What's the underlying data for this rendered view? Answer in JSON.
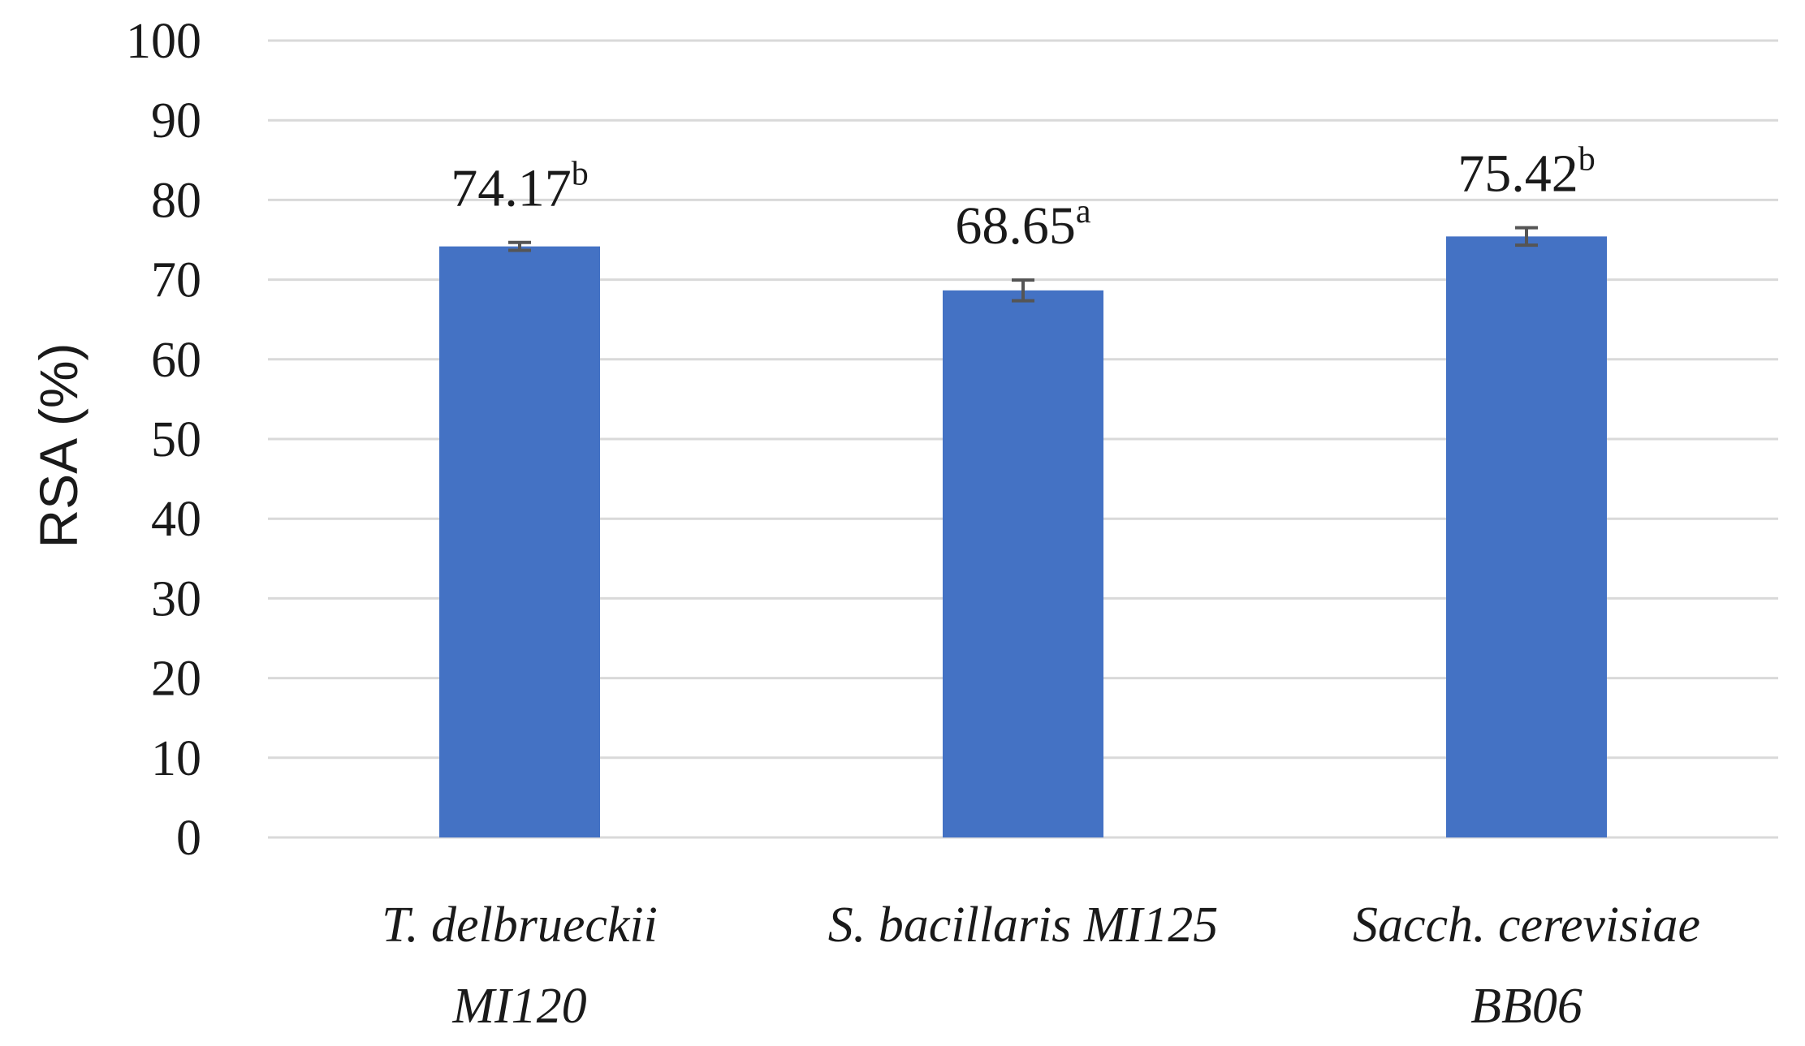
{
  "chart_data": {
    "type": "bar",
    "title": "",
    "xlabel": "",
    "ylabel": "RSA (%)",
    "ylim": [
      0,
      100
    ],
    "yticks": [
      0,
      10,
      20,
      30,
      40,
      50,
      60,
      70,
      80,
      90,
      100
    ],
    "grid": true,
    "legend": "none",
    "bar_color": "#4472c4",
    "categories": [
      [
        "T. delbrueckii",
        "MI120"
      ],
      [
        "S. bacillaris MI125"
      ],
      [
        "Sacch. cerevisiae",
        "BB06"
      ]
    ],
    "values": [
      74.17,
      68.65,
      75.42
    ],
    "errors": [
      0.5,
      1.3,
      1.1
    ],
    "data_labels": [
      {
        "value": "74.17",
        "letter": "b"
      },
      {
        "value": "68.65",
        "letter": "a"
      },
      {
        "value": "75.42",
        "letter": "b"
      }
    ]
  }
}
